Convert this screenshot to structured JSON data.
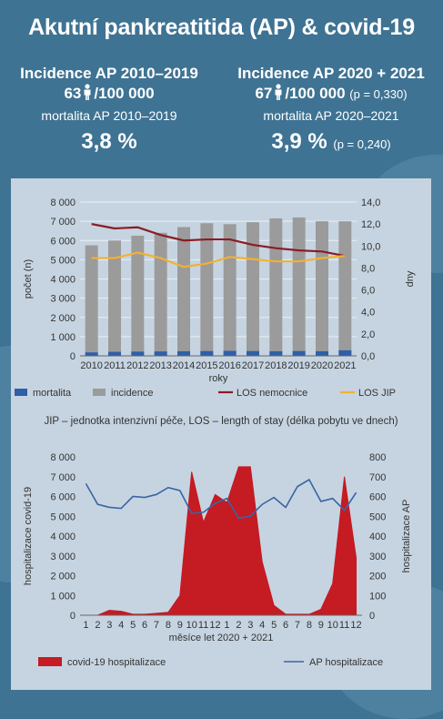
{
  "title": "Akutní pankreatitida (AP) & covid-19",
  "left": {
    "heading": "Incidence AP 2010–2019",
    "rate_value": "63",
    "rate_unit": "/100 000",
    "mortality_label": "mortalita AP 2010–2019",
    "mortality_value": "3,8 %"
  },
  "right": {
    "heading": "Incidence AP 2020 + 2021",
    "rate_value": "67",
    "rate_unit": "/100 000",
    "rate_p": "(p = 0,330)",
    "mortality_label": "mortalita AP 2020–2021",
    "mortality_value": "3,9 %",
    "mortality_p": "(p = 0,240)"
  },
  "note": "JIP – jednotka intenzivní péče, LOS – length of stay (délka pobytu ve dnech)",
  "colors": {
    "bar_grey": "#9b9b9b",
    "bar_blue": "#2e5fa8",
    "los_nemocnice": "#8b1b24",
    "los_jip": "#f2b132",
    "covid_red": "#c51b23",
    "ap_line": "#3a64a6"
  },
  "chart_data": [
    {
      "type": "bar",
      "categories": [
        "2010",
        "2011",
        "2012",
        "2013",
        "2014",
        "2015",
        "2016",
        "2017",
        "2018",
        "2019",
        "2020",
        "2021"
      ],
      "xlabel": "roky",
      "ylabel": "počet (n)",
      "y2label": "dny",
      "ylim": [
        0,
        8000
      ],
      "y2lim": [
        0,
        14
      ],
      "yticks": [
        "0",
        "1 000",
        "2 000",
        "3 000",
        "4 000",
        "5 000",
        "6 000",
        "7 000",
        "8 000"
      ],
      "y2ticks": [
        "0,0",
        "2,0",
        "4,0",
        "6,0",
        "8,0",
        "10,0",
        "12,0",
        "14,0"
      ],
      "legend_position": "bottom",
      "series": [
        {
          "name": "mortalita",
          "kind": "bar",
          "values": [
            180,
            210,
            220,
            230,
            240,
            250,
            260,
            250,
            240,
            250,
            240,
            290
          ]
        },
        {
          "name": "incidence",
          "kind": "bar",
          "values": [
            5750,
            6000,
            6250,
            6400,
            6700,
            6900,
            6850,
            6950,
            7150,
            7200,
            7000,
            7000
          ]
        },
        {
          "name": "LOS nemocnice",
          "kind": "line",
          "axis": "y2",
          "values": [
            12.0,
            11.6,
            11.7,
            11.0,
            10.5,
            10.6,
            10.6,
            10.1,
            9.8,
            9.6,
            9.5,
            9.1
          ]
        },
        {
          "name": "LOS JIP",
          "kind": "line",
          "axis": "y2",
          "values": [
            8.9,
            8.9,
            9.4,
            8.9,
            8.1,
            8.4,
            9.0,
            8.8,
            8.6,
            8.6,
            8.9,
            9.1
          ]
        }
      ]
    },
    {
      "type": "area",
      "categories": [
        "1",
        "2",
        "3",
        "4",
        "5",
        "6",
        "7",
        "8",
        "9",
        "10",
        "11",
        "12",
        "1",
        "2",
        "3",
        "4",
        "5",
        "6",
        "7",
        "8",
        "9",
        "10",
        "11",
        "12"
      ],
      "xlabel": "měsíce let 2020 + 2021",
      "ylabel": "hospitalizace covid-19",
      "y2label": "hospitalizace AP",
      "ylim": [
        0,
        8000
      ],
      "y2lim": [
        0,
        800
      ],
      "yticks": [
        "0",
        "1 000",
        "2 000",
        "3 000",
        "4 000",
        "5 000",
        "6 000",
        "7 000",
        "8 000"
      ],
      "y2ticks": [
        "0",
        "100",
        "200",
        "300",
        "400",
        "500",
        "600",
        "700",
        "800"
      ],
      "legend_position": "bottom",
      "series": [
        {
          "name": "covid-19 hospitalizace",
          "kind": "area",
          "values": [
            0,
            0,
            250,
            200,
            50,
            50,
            100,
            150,
            1000,
            7250,
            4700,
            6100,
            5700,
            7500,
            7500,
            2700,
            500,
            50,
            50,
            50,
            300,
            1600,
            7000,
            2900
          ]
        },
        {
          "name": "AP hospitalizace",
          "kind": "line",
          "axis": "y2",
          "values": [
            665,
            560,
            545,
            540,
            600,
            595,
            610,
            645,
            630,
            515,
            520,
            565,
            590,
            490,
            500,
            560,
            595,
            545,
            650,
            685,
            575,
            590,
            530,
            620
          ]
        }
      ]
    }
  ]
}
